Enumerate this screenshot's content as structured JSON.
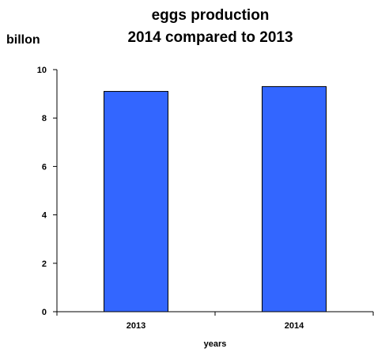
{
  "chart_data": {
    "type": "bar",
    "title_lines": [
      "eggs production",
      "2014 compared to 2013"
    ],
    "ylabel": "billon",
    "xlabel": "years",
    "categories": [
      "2013",
      "2014"
    ],
    "values": [
      9.1,
      9.3
    ],
    "ylim": [
      0,
      10
    ],
    "yticks": [
      "0",
      "2",
      "4",
      "6",
      "8",
      "10"
    ],
    "ytick_values": [
      0,
      2,
      4,
      6,
      8,
      10
    ],
    "bar_color": "#3366ff",
    "grid": false,
    "legend": "none"
  }
}
